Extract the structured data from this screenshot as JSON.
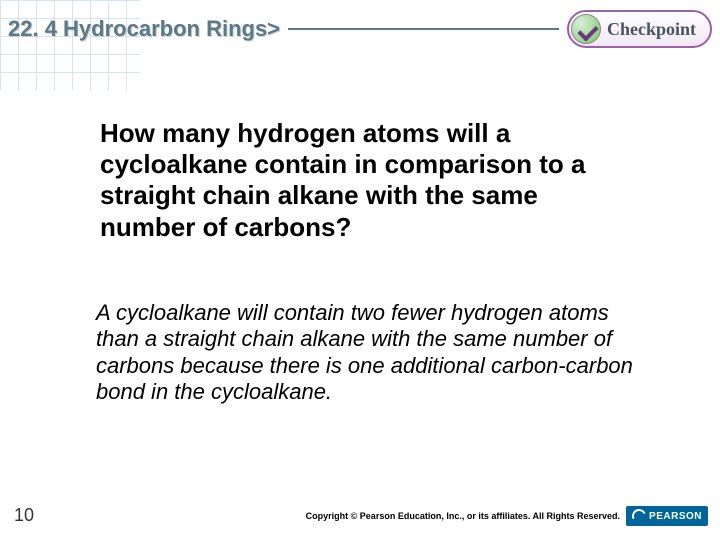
{
  "header": {
    "section_title": "22. 4 Hydrocarbon Rings>",
    "checkpoint_label": "Checkpoint"
  },
  "content": {
    "question": "How many hydrogen atoms will a cycloalkane contain in comparison to a straight chain alkane with the same number of carbons?",
    "answer": "A cycloalkane will contain two fewer hydrogen atoms than a straight chain alkane with the same number of carbons because there is one additional carbon-carbon bond in the cycloalkane."
  },
  "footer": {
    "page_number": "10",
    "copyright": "Copyright © Pearson Education, Inc., or its affiliates. All Rights Reserved.",
    "logo_text": "PEARSON"
  },
  "colors": {
    "title_color": "#5a7a8a",
    "checkpoint_border": "#9c5fa8",
    "logo_bg": "#006699",
    "grid_color": "#b8d4e8"
  }
}
